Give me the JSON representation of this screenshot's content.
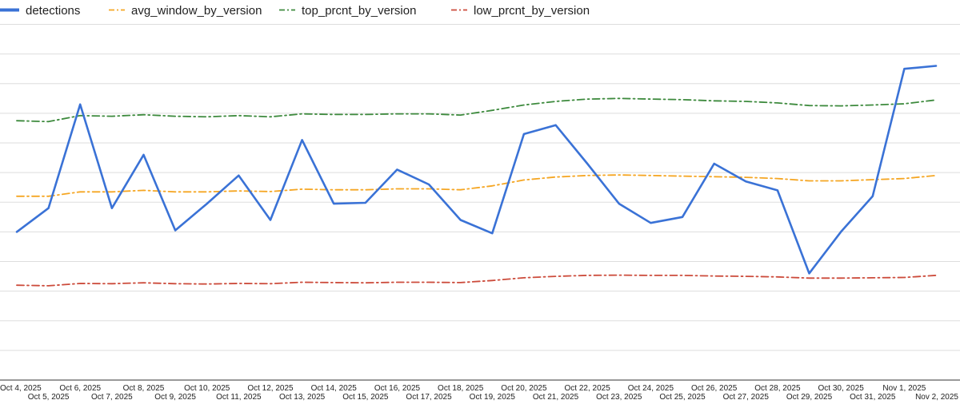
{
  "chart_data": {
    "type": "line",
    "title": "",
    "xlabel": "",
    "ylabel": "",
    "x": [
      "Oct 4, 2025",
      "Oct 5, 2025",
      "Oct 6, 2025",
      "Oct 7, 2025",
      "Oct 8, 2025",
      "Oct 9, 2025",
      "Oct 10, 2025",
      "Oct 11, 2025",
      "Oct 12, 2025",
      "Oct 13, 2025",
      "Oct 14, 2025",
      "Oct 15, 2025",
      "Oct 16, 2025",
      "Oct 17, 2025",
      "Oct 18, 2025",
      "Oct 19, 2025",
      "Oct 20, 2025",
      "Oct 21, 2025",
      "Oct 22, 2025",
      "Oct 23, 2025",
      "Oct 24, 2025",
      "Oct 25, 2025",
      "Oct 26, 2025",
      "Oct 27, 2025",
      "Oct 28, 2025",
      "Oct 29, 2025",
      "Oct 30, 2025",
      "Oct 31, 2025",
      "Nov 1, 2025",
      "Nov 2, 2025"
    ],
    "ylim": [
      0,
      12
    ],
    "yticks_labeled": false,
    "grid": true,
    "legend_position": "top-left",
    "series": [
      {
        "name": "detections",
        "color": "#3a72d6",
        "style": "solid",
        "values": [
          5.0,
          5.8,
          9.3,
          5.8,
          7.6,
          5.05,
          5.95,
          6.9,
          5.4,
          8.1,
          5.95,
          5.98,
          7.1,
          6.6,
          5.4,
          4.95,
          8.3,
          8.6,
          7.3,
          5.95,
          5.3,
          5.5,
          7.3,
          6.7,
          6.4,
          3.6,
          5.0,
          6.2,
          10.5,
          10.6
        ]
      },
      {
        "name": "avg_window_by_version",
        "color": "#f5a623",
        "style": "dashdot",
        "values": [
          6.2,
          6.2,
          6.35,
          6.35,
          6.4,
          6.35,
          6.35,
          6.38,
          6.36,
          6.44,
          6.42,
          6.42,
          6.45,
          6.45,
          6.42,
          6.55,
          6.75,
          6.85,
          6.9,
          6.92,
          6.9,
          6.88,
          6.86,
          6.84,
          6.8,
          6.72,
          6.72,
          6.76,
          6.8,
          6.9
        ]
      },
      {
        "name": "top_prcnt_by_version",
        "color": "#3d8a3d",
        "style": "dashdot",
        "values": [
          8.75,
          8.72,
          8.92,
          8.9,
          8.95,
          8.9,
          8.88,
          8.92,
          8.88,
          8.98,
          8.96,
          8.96,
          8.98,
          8.98,
          8.94,
          9.1,
          9.28,
          9.4,
          9.48,
          9.5,
          9.48,
          9.46,
          9.42,
          9.4,
          9.35,
          9.26,
          9.25,
          9.28,
          9.32,
          9.45
        ]
      },
      {
        "name": "low_prcnt_by_version",
        "color": "#cc4b3b",
        "style": "dashdot",
        "values": [
          3.2,
          3.18,
          3.26,
          3.25,
          3.28,
          3.25,
          3.24,
          3.26,
          3.25,
          3.3,
          3.29,
          3.28,
          3.3,
          3.3,
          3.29,
          3.36,
          3.45,
          3.5,
          3.53,
          3.54,
          3.53,
          3.53,
          3.51,
          3.5,
          3.48,
          3.44,
          3.44,
          3.45,
          3.46,
          3.53
        ]
      }
    ]
  }
}
